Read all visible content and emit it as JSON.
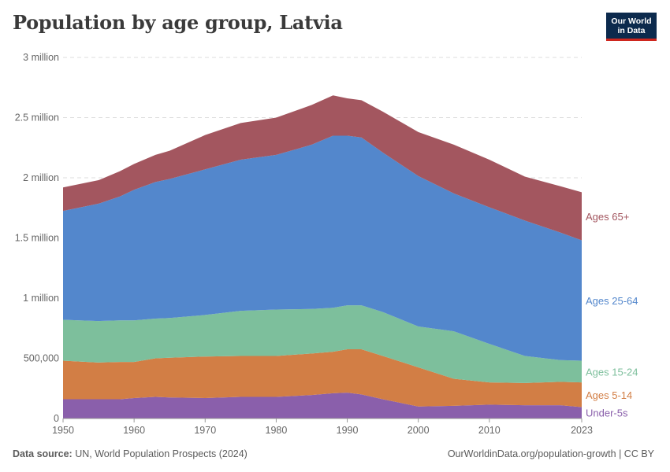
{
  "header": {
    "title": "Population by age group, Latvia",
    "logo_line1": "Our World",
    "logo_line2": "in Data"
  },
  "footer": {
    "source_label": "Data source:",
    "source_text": "UN, World Population Prospects (2024)",
    "url_text": "OurWorldinData.org/population-growth | CC BY"
  },
  "colors": {
    "under5": "#8a5fab",
    "ages5_14": "#d27e45",
    "ages15_24": "#7dbf9c",
    "ages25_64": "#5387cc",
    "ages65": "#a3565f"
  },
  "chart_data": {
    "type": "area",
    "stacked": true,
    "title": "Population by age group, Latvia",
    "xlabel": "",
    "ylabel": "",
    "xlim": [
      1950,
      2023
    ],
    "ylim": [
      0,
      3000000
    ],
    "grid": true,
    "x_ticks": [
      1950,
      1960,
      1970,
      1980,
      1990,
      2000,
      2010,
      2023
    ],
    "x_tick_labels": [
      "1950",
      "1960",
      "1970",
      "1980",
      "1990",
      "2000",
      "2010",
      "2023"
    ],
    "y_ticks": [
      0,
      500000,
      1000000,
      1500000,
      2000000,
      2500000,
      3000000
    ],
    "y_tick_labels": [
      "0",
      "500,000",
      "1 million",
      "1.5 million",
      "2 million",
      "2.5 million",
      "3 million"
    ],
    "x": [
      1950,
      1955,
      1958,
      1960,
      1963,
      1965,
      1970,
      1975,
      1980,
      1985,
      1988,
      1990,
      1992,
      1995,
      2000,
      2005,
      2010,
      2015,
      2020,
      2023
    ],
    "series": [
      {
        "name": "Under-5s",
        "label": "Under-5s",
        "color_key": "under5",
        "values": [
          160000,
          160000,
          160000,
          170000,
          180000,
          175000,
          170000,
          180000,
          180000,
          195000,
          210000,
          215000,
          200000,
          160000,
          100000,
          105000,
          115000,
          110000,
          110000,
          95000
        ]
      },
      {
        "name": "Ages 5-14",
        "label": "Ages 5-14",
        "color_key": "ages5_14",
        "values": [
          320000,
          305000,
          310000,
          300000,
          320000,
          330000,
          345000,
          340000,
          340000,
          345000,
          345000,
          360000,
          375000,
          360000,
          325000,
          225000,
          185000,
          185000,
          195000,
          205000
        ]
      },
      {
        "name": "Ages 15-24",
        "label": "Ages 15-24",
        "color_key": "ages15_24",
        "values": [
          340000,
          345000,
          345000,
          345000,
          330000,
          330000,
          345000,
          375000,
          385000,
          370000,
          365000,
          365000,
          365000,
          365000,
          340000,
          395000,
          320000,
          225000,
          180000,
          180000
        ]
      },
      {
        "name": "Ages 25-64",
        "label": "Ages 25-64",
        "color_key": "ages25_64",
        "values": [
          905000,
          975000,
          1030000,
          1085000,
          1135000,
          1155000,
          1210000,
          1255000,
          1285000,
          1365000,
          1430000,
          1410000,
          1395000,
          1325000,
          1250000,
          1145000,
          1135000,
          1125000,
          1060000,
          1000000
        ]
      },
      {
        "name": "Ages 65+",
        "label": "Ages 65+",
        "color_key": "ages65",
        "values": [
          195000,
          195000,
          210000,
          215000,
          225000,
          235000,
          285000,
          305000,
          310000,
          330000,
          335000,
          310000,
          310000,
          340000,
          365000,
          405000,
          395000,
          365000,
          385000,
          400000
        ]
      }
    ]
  }
}
